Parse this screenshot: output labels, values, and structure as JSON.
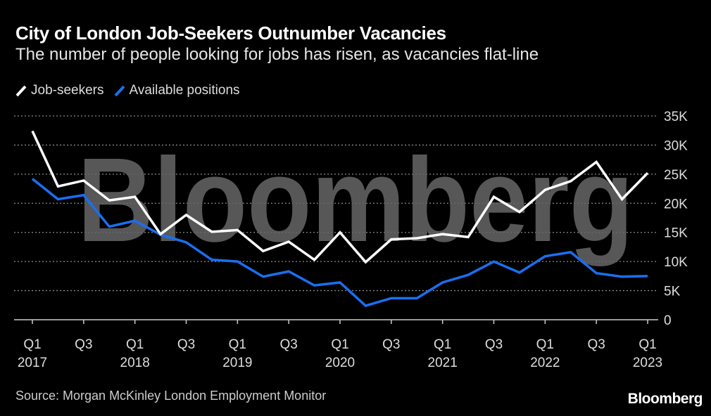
{
  "chart_data": {
    "type": "line",
    "title": "City of London Job-Seekers Outnumber Vacancies",
    "subtitle": "The number of people looking for jobs has risen, as vacancies flat-line",
    "x": [
      "Q1 2017",
      "Q2 2017",
      "Q3 2017",
      "Q4 2017",
      "Q1 2018",
      "Q2 2018",
      "Q3 2018",
      "Q4 2018",
      "Q1 2019",
      "Q2 2019",
      "Q3 2019",
      "Q4 2019",
      "Q1 2020",
      "Q2 2020",
      "Q3 2020",
      "Q4 2020",
      "Q1 2021",
      "Q2 2021",
      "Q3 2021",
      "Q4 2021",
      "Q1 2022",
      "Q2 2022",
      "Q3 2022",
      "Q4 2022",
      "Q1 2023"
    ],
    "x_ticks": [
      {
        "index": 0,
        "q": "Q1",
        "year": "2017"
      },
      {
        "index": 2,
        "q": "Q3",
        "year": ""
      },
      {
        "index": 4,
        "q": "Q1",
        "year": "2018"
      },
      {
        "index": 6,
        "q": "Q3",
        "year": ""
      },
      {
        "index": 8,
        "q": "Q1",
        "year": "2019"
      },
      {
        "index": 10,
        "q": "Q3",
        "year": ""
      },
      {
        "index": 12,
        "q": "Q1",
        "year": "2020"
      },
      {
        "index": 14,
        "q": "Q3",
        "year": ""
      },
      {
        "index": 16,
        "q": "Q1",
        "year": "2021"
      },
      {
        "index": 18,
        "q": "Q3",
        "year": ""
      },
      {
        "index": 20,
        "q": "Q1",
        "year": "2022"
      },
      {
        "index": 22,
        "q": "Q3",
        "year": ""
      },
      {
        "index": 24,
        "q": "Q1",
        "year": "2023"
      }
    ],
    "series": [
      {
        "name": "Job-seekers",
        "color": "#ffffff",
        "values": [
          32400,
          22900,
          23900,
          20500,
          21100,
          14700,
          18000,
          15100,
          15400,
          11800,
          13400,
          10300,
          15000,
          9900,
          13800,
          14000,
          14700,
          14200,
          21100,
          18500,
          22300,
          23800,
          27100,
          20700,
          25200
        ]
      },
      {
        "name": "Available positions",
        "color": "#1a6ff0",
        "values": [
          24200,
          20700,
          21400,
          16000,
          17000,
          14600,
          13300,
          10300,
          10000,
          7400,
          8300,
          5900,
          6400,
          2400,
          3700,
          3700,
          6400,
          7700,
          10000,
          8100,
          10900,
          11600,
          8000,
          7400,
          7500
        ]
      }
    ],
    "y_ticks": [
      {
        "value": 0,
        "label": "0"
      },
      {
        "value": 5000,
        "label": "5K"
      },
      {
        "value": 10000,
        "label": "10K"
      },
      {
        "value": 15000,
        "label": "15K"
      },
      {
        "value": 20000,
        "label": "20K"
      },
      {
        "value": 25000,
        "label": "25K"
      },
      {
        "value": 30000,
        "label": "30K"
      },
      {
        "value": 35000,
        "label": "35K"
      }
    ],
    "ylim": [
      0,
      35000
    ],
    "grid": true,
    "legend_position": "top-left",
    "xlabel": "",
    "ylabel": ""
  },
  "watermark": "Bloomberg",
  "source": "Source: Morgan McKinley London Employment Monitor",
  "logo": "Bloomberg"
}
